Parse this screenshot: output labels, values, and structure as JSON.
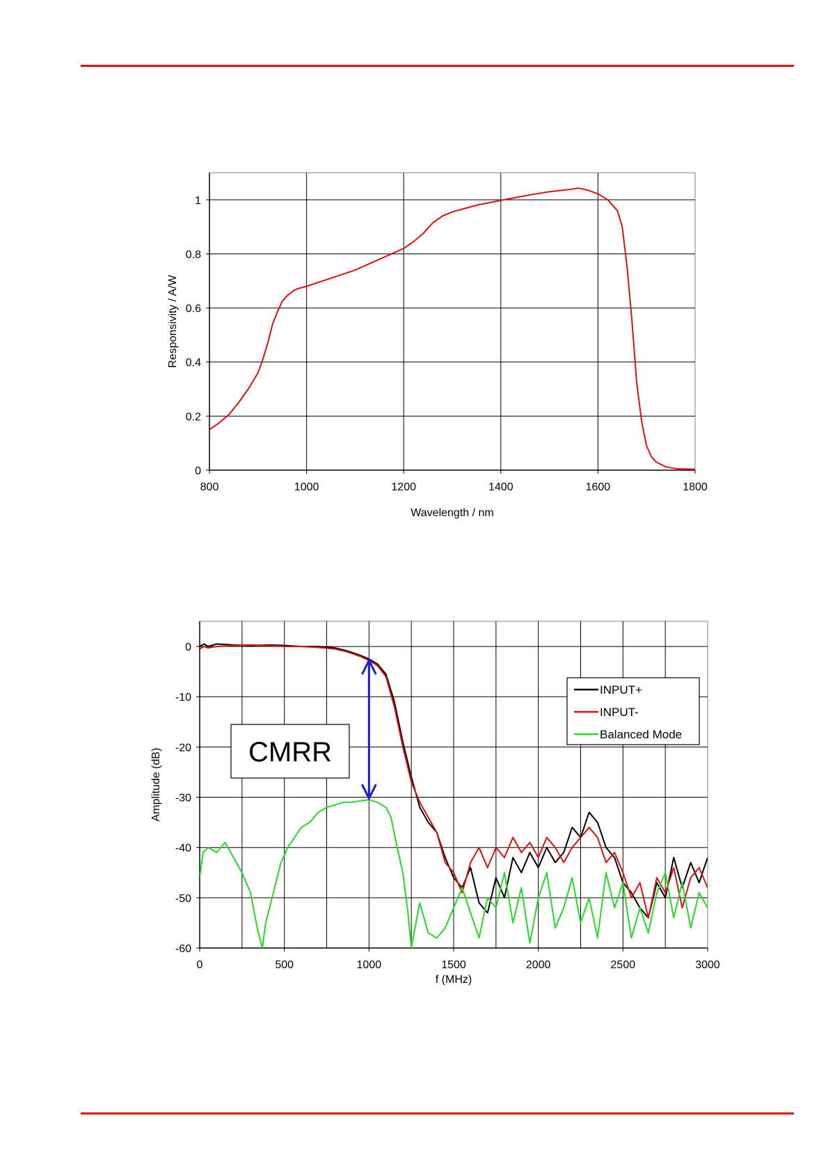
{
  "page": {
    "rule_color": "#e01010"
  },
  "chart_data": [
    {
      "type": "line",
      "title": "",
      "xlabel": "Wavelength / nm",
      "ylabel": "Responsivity / A/W",
      "xlim": [
        800,
        1800
      ],
      "ylim": [
        0,
        1.1
      ],
      "x_ticks": [
        800,
        1000,
        1200,
        1400,
        1600,
        1800
      ],
      "y_ticks": [
        0,
        0.2,
        0.4,
        0.6,
        0.8,
        1
      ],
      "y_tick_labels": [
        "0",
        "0.2",
        "0.4",
        "0.6",
        "0.8",
        "1"
      ],
      "grid": true,
      "legend": null,
      "series": [
        {
          "color": "#e01010",
          "x": [
            800,
            820,
            840,
            860,
            880,
            900,
            910,
            920,
            930,
            940,
            950,
            960,
            970,
            980,
            1000,
            1050,
            1100,
            1150,
            1200,
            1220,
            1240,
            1260,
            1280,
            1300,
            1320,
            1350,
            1400,
            1450,
            1500,
            1540,
            1560,
            1580,
            1600,
            1620,
            1640,
            1650,
            1660,
            1670,
            1680,
            1690,
            1700,
            1710,
            1720,
            1740,
            1760,
            1780,
            1800
          ],
          "y": [
            0.15,
            0.175,
            0.205,
            0.25,
            0.3,
            0.36,
            0.41,
            0.47,
            0.54,
            0.585,
            0.625,
            0.645,
            0.66,
            0.67,
            0.68,
            0.71,
            0.74,
            0.78,
            0.82,
            0.845,
            0.875,
            0.915,
            0.94,
            0.955,
            0.965,
            0.98,
            0.998,
            1.015,
            1.03,
            1.038,
            1.043,
            1.035,
            1.022,
            1.0,
            0.96,
            0.9,
            0.75,
            0.55,
            0.32,
            0.18,
            0.09,
            0.05,
            0.03,
            0.012,
            0.006,
            0.004,
            0.003
          ]
        }
      ]
    },
    {
      "type": "line",
      "title": "",
      "xlabel": "f (MHz)",
      "ylabel": "Amplitude (dB)",
      "xlim": [
        0,
        3000
      ],
      "ylim": [
        -60,
        5
      ],
      "x_ticks": [
        0,
        500,
        1000,
        1500,
        2000,
        2500,
        3000
      ],
      "y_ticks": [
        0,
        -10,
        -20,
        -30,
        -40,
        -50,
        -60
      ],
      "grid": true,
      "legend": "right",
      "annotations": [
        {
          "text": "CMRR",
          "arrow_x": 1000,
          "arrow_from": -2.5,
          "arrow_to": -30.5
        }
      ],
      "series": [
        {
          "name": "INPUT+",
          "color": "#000000",
          "x": [
            0,
            25,
            50,
            100,
            200,
            300,
            400,
            500,
            600,
            700,
            800,
            850,
            900,
            950,
            1000,
            1050,
            1100,
            1150,
            1200,
            1250,
            1300,
            1350,
            1400,
            1450,
            1500,
            1550,
            1600,
            1650,
            1700,
            1750,
            1800,
            1850,
            1900,
            1950,
            2000,
            2050,
            2100,
            2150,
            2200,
            2250,
            2300,
            2350,
            2400,
            2450,
            2500,
            2550,
            2600,
            2650,
            2700,
            2750,
            2800,
            2850,
            2900,
            2950,
            3000
          ],
          "y": [
            0,
            0.5,
            0,
            0.5,
            0.3,
            0.2,
            0.3,
            0.2,
            0,
            0,
            -0.3,
            -0.7,
            -1.2,
            -1.8,
            -2.5,
            -3.5,
            -5.5,
            -11,
            -19,
            -26,
            -32,
            -35,
            -37,
            -42,
            -46,
            -48,
            -44,
            -51,
            -53,
            -46,
            -50,
            -42,
            -45,
            -41,
            -44,
            -40,
            -43,
            -41,
            -36,
            -38,
            -33,
            -35,
            -40,
            -42,
            -47,
            -49,
            -52,
            -54,
            -47,
            -50,
            -42,
            -48,
            -43,
            -47,
            -42
          ]
        },
        {
          "name": "INPUT-",
          "color": "#e01010",
          "x": [
            0,
            25,
            50,
            100,
            200,
            300,
            400,
            500,
            600,
            700,
            800,
            850,
            900,
            950,
            1000,
            1050,
            1100,
            1150,
            1200,
            1250,
            1300,
            1350,
            1400,
            1450,
            1500,
            1550,
            1600,
            1650,
            1700,
            1750,
            1800,
            1850,
            1900,
            1950,
            2000,
            2050,
            2100,
            2150,
            2200,
            2250,
            2300,
            2350,
            2400,
            2450,
            2500,
            2550,
            2600,
            2650,
            2700,
            2750,
            2800,
            2850,
            2900,
            2950,
            3000
          ],
          "y": [
            -0.5,
            0,
            -0.3,
            0,
            0.2,
            0.3,
            0.2,
            0,
            0,
            -0.2,
            -0.5,
            -0.9,
            -1.4,
            -2.0,
            -2.8,
            -3.8,
            -6,
            -12,
            -20,
            -27,
            -31,
            -34,
            -37,
            -43,
            -45,
            -49,
            -43,
            -40,
            -44,
            -40,
            -42,
            -38,
            -41,
            -39,
            -42,
            -38,
            -40,
            -43,
            -40,
            -38,
            -36,
            -38,
            -43,
            -41,
            -45,
            -50,
            -47,
            -54,
            -46,
            -49,
            -44,
            -52,
            -46,
            -44,
            -48
          ]
        },
        {
          "name": "Balanced Mode",
          "color": "#22dd22",
          "x": [
            0,
            20,
            50,
            100,
            150,
            200,
            250,
            300,
            340,
            370,
            390,
            420,
            450,
            480,
            520,
            560,
            600,
            650,
            700,
            750,
            800,
            850,
            900,
            950,
            1000,
            1050,
            1100,
            1130,
            1160,
            1200,
            1230,
            1250,
            1300,
            1350,
            1400,
            1450,
            1500,
            1550,
            1600,
            1650,
            1700,
            1750,
            1800,
            1850,
            1900,
            1950,
            2000,
            2050,
            2100,
            2150,
            2200,
            2250,
            2300,
            2350,
            2400,
            2450,
            2500,
            2550,
            2600,
            2650,
            2700,
            2750,
            2800,
            2850,
            2900,
            2950,
            3000
          ],
          "y": [
            -46,
            -41,
            -40,
            -41,
            -39,
            -42,
            -45,
            -49,
            -56,
            -60,
            -55,
            -51,
            -47,
            -43,
            -40,
            -38,
            -36,
            -35,
            -33,
            -32,
            -31.5,
            -31,
            -31,
            -30.7,
            -30.5,
            -31,
            -32,
            -34,
            -39,
            -45,
            -53,
            -60,
            -51,
            -57,
            -58,
            -56,
            -52,
            -48,
            -53,
            -58,
            -50,
            -52,
            -45,
            -55,
            -48,
            -59,
            -50,
            -45,
            -56,
            -52,
            -46,
            -55,
            -50,
            -58,
            -45,
            -52,
            -47,
            -58,
            -52,
            -57,
            -49,
            -45,
            -54,
            -47,
            -56,
            -49,
            -52
          ]
        }
      ]
    }
  ]
}
